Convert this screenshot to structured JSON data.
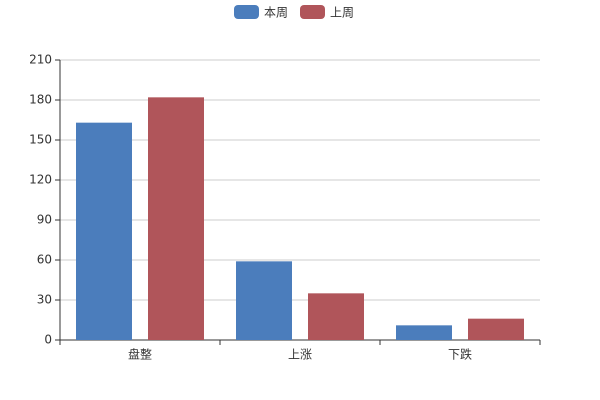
{
  "chart_data": {
    "type": "bar",
    "categories": [
      "盘整",
      "上涨",
      "下跌"
    ],
    "series": [
      {
        "name": "本周",
        "color": "#4b7dbc",
        "values": [
          163,
          59,
          11
        ]
      },
      {
        "name": "上周",
        "color": "#b0555a",
        "values": [
          182,
          35,
          16
        ]
      }
    ],
    "ylim": [
      0,
      210
    ],
    "yticks": [
      0,
      30,
      60,
      90,
      120,
      150,
      180,
      210
    ],
    "grid": true,
    "legend": "top"
  }
}
